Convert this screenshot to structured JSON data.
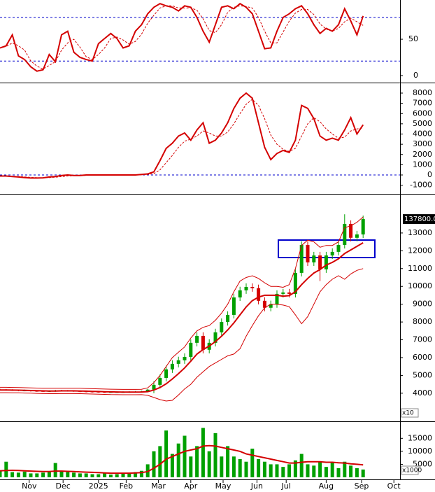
{
  "chart_data": [
    {
      "type": "line",
      "x": [
        0,
        4,
        8,
        12,
        16,
        20,
        24,
        28,
        32,
        36,
        40,
        44,
        48,
        52,
        56,
        60,
        64,
        68,
        72,
        76,
        80,
        84,
        88,
        92,
        96,
        100,
        104,
        108,
        112,
        116,
        120,
        124,
        128,
        132,
        136,
        140,
        144,
        148,
        152,
        156,
        160,
        164,
        168,
        172,
        176,
        180,
        184,
        188,
        192,
        196,
        200,
        204,
        208,
        212,
        216,
        220,
        224,
        228,
        232,
        236
      ],
      "xlim": [
        0,
        260
      ],
      "ylim": [
        -8.7,
        104
      ],
      "yticks": [
        0,
        50
      ],
      "reference_lines": [
        20,
        80
      ],
      "series": [
        {
          "color": "#d40000",
          "width": 2,
          "dashed": false,
          "values": [
            38,
            41,
            56,
            27,
            22,
            12,
            6,
            8,
            29,
            19,
            56,
            61,
            32,
            25,
            22,
            20,
            44,
            51,
            58,
            51,
            38,
            41,
            61,
            70,
            85,
            94,
            99,
            96,
            94,
            89,
            96,
            94,
            80,
            61,
            46,
            70,
            94,
            96,
            92,
            99,
            94,
            85,
            61,
            37,
            38,
            61,
            80,
            85,
            92,
            96,
            85,
            70,
            58,
            65,
            61,
            70,
            92,
            75,
            56,
            82
          ]
        },
        {
          "color": "#d40000",
          "width": 1,
          "dashed": true,
          "values": [
            38,
            40,
            45,
            41,
            35,
            20,
            13,
            9,
            14,
            19,
            35,
            45,
            50,
            39,
            26,
            22,
            29,
            38,
            51,
            53,
            49,
            43,
            47,
            57,
            72,
            83,
            93,
            96,
            96,
            93,
            93,
            93,
            90,
            78,
            62,
            59,
            70,
            87,
            94,
            96,
            95,
            93,
            80,
            61,
            45,
            45,
            60,
            75,
            86,
            91,
            91,
            84,
            71,
            64,
            61,
            65,
            74,
            79,
            74,
            69
          ]
        }
      ]
    },
    {
      "type": "line",
      "x": [
        0,
        4,
        8,
        12,
        16,
        20,
        24,
        28,
        32,
        36,
        40,
        44,
        48,
        52,
        56,
        60,
        64,
        68,
        72,
        76,
        80,
        84,
        88,
        92,
        96,
        100,
        104,
        108,
        112,
        116,
        120,
        124,
        128,
        132,
        136,
        140,
        144,
        148,
        152,
        156,
        160,
        164,
        168,
        172,
        176,
        180,
        184,
        188,
        192,
        196,
        200,
        204,
        208,
        212,
        216,
        220,
        224,
        228,
        232,
        236
      ],
      "xlim": [
        0,
        260
      ],
      "ylim": [
        -1710,
        8890
      ],
      "yticks": [
        -1000,
        0,
        1000,
        2000,
        3000,
        4000,
        5000,
        6000,
        7000,
        8000
      ],
      "reference_lines": [
        0
      ],
      "series": [
        {
          "color": "#d40000",
          "width": 2,
          "dashed": false,
          "values": [
            -100,
            -100,
            -150,
            -200,
            -250,
            -300,
            -300,
            -280,
            -200,
            -150,
            -50,
            0,
            -50,
            -50,
            0,
            0,
            0,
            0,
            0,
            0,
            0,
            0,
            0,
            50,
            100,
            300,
            1400,
            2600,
            3100,
            3800,
            4100,
            3400,
            4400,
            5100,
            3100,
            3400,
            4100,
            5100,
            6500,
            7500,
            8000,
            7500,
            5100,
            2700,
            1500,
            2100,
            2400,
            2200,
            3400,
            6800,
            6500,
            5500,
            3800,
            3400,
            3600,
            3400,
            4400,
            5600,
            4000,
            4900
          ]
        },
        {
          "color": "#d40000",
          "width": 1,
          "dashed": true,
          "values": [
            -100,
            -100,
            -120,
            -150,
            -190,
            -230,
            -270,
            -280,
            -260,
            -220,
            -160,
            -100,
            -70,
            -50,
            -40,
            -20,
            -10,
            0,
            0,
            0,
            0,
            0,
            0,
            20,
            50,
            130,
            500,
            1200,
            1900,
            2700,
            3300,
            3500,
            3800,
            4300,
            4100,
            3800,
            3800,
            4200,
            5000,
            6000,
            6900,
            7400,
            6800,
            5500,
            3900,
            3000,
            2500,
            2300,
            2600,
            3800,
            5000,
            5600,
            5200,
            4500,
            4000,
            3600,
            3700,
            4300,
            4500,
            4600
          ]
        }
      ]
    },
    {
      "type": "candlestick",
      "x": [
        0,
        4,
        8,
        12,
        16,
        20,
        24,
        28,
        32,
        36,
        40,
        44,
        48,
        52,
        56,
        60,
        64,
        68,
        72,
        76,
        80,
        84,
        88,
        92,
        96,
        100,
        104,
        108,
        112,
        116,
        120,
        124,
        128,
        132,
        136,
        140,
        144,
        148,
        152,
        156,
        160,
        164,
        168,
        172,
        176,
        180,
        184,
        188,
        192,
        196,
        200,
        204,
        208,
        212,
        216,
        220,
        224,
        228,
        232,
        236
      ],
      "xlim": [
        0,
        260
      ],
      "ylim": [
        2500,
        15080
      ],
      "yticks": [
        4000,
        5000,
        6000,
        7000,
        8000,
        9000,
        10000,
        11000,
        12000,
        13000
      ],
      "axis_unit": "x10",
      "last_label": "137800.0",
      "up_color": "#00a000",
      "down_color": "#d40000",
      "open": [
        4210,
        4200,
        4180,
        4170,
        4150,
        4150,
        4130,
        4120,
        4110,
        4120,
        4150,
        4140,
        4130,
        4120,
        4100,
        4090,
        4080,
        4070,
        4060,
        4060,
        4060,
        4060,
        4070,
        4080,
        4100,
        4200,
        4470,
        4860,
        5340,
        5650,
        5850,
        6040,
        6830,
        7220,
        6440,
        6830,
        7420,
        8000,
        8400,
        9380,
        9780,
        9970,
        9900,
        9190,
        8800,
        9000,
        9580,
        9660,
        9580,
        10760,
        12330,
        11350,
        11740,
        10960,
        11740,
        11940,
        12330,
        13510,
        12730,
        12920
      ],
      "high": [
        4250,
        4240,
        4220,
        4210,
        4200,
        4190,
        4170,
        4160,
        4160,
        4190,
        4190,
        4180,
        4170,
        4160,
        4140,
        4130,
        4120,
        4110,
        4100,
        4100,
        4100,
        4110,
        4120,
        4140,
        4240,
        4670,
        5060,
        5540,
        5850,
        6050,
        6240,
        7030,
        7420,
        7420,
        7030,
        7620,
        8200,
        8600,
        9580,
        9980,
        10170,
        10170,
        10100,
        9390,
        9200,
        9780,
        9860,
        9860,
        10960,
        12530,
        12530,
        11940,
        11940,
        11940,
        12140,
        12530,
        14050,
        13710,
        13120,
        13980
      ],
      "low": [
        4160,
        4140,
        4130,
        4110,
        4110,
        4090,
        4080,
        4070,
        4070,
        4080,
        4100,
        4090,
        4080,
        4060,
        4050,
        4040,
        4030,
        4020,
        4020,
        4020,
        4020,
        4020,
        4030,
        4040,
        4060,
        4000,
        4270,
        4660,
        5140,
        5450,
        5650,
        5840,
        6630,
        6240,
        6240,
        6630,
        7220,
        7800,
        8200,
        9180,
        9580,
        9700,
        8990,
        8600,
        8600,
        8800,
        9380,
        9380,
        9380,
        10560,
        11150,
        11150,
        10300,
        10760,
        11540,
        11740,
        12130,
        12530,
        12530,
        12720
      ],
      "close": [
        4200,
        4180,
        4170,
        4150,
        4150,
        4130,
        4120,
        4110,
        4120,
        4150,
        4140,
        4130,
        4120,
        4100,
        4090,
        4080,
        4070,
        4060,
        4060,
        4060,
        4060,
        4070,
        4080,
        4100,
        4200,
        4470,
        4860,
        5340,
        5650,
        5850,
        6040,
        6830,
        7220,
        6440,
        6830,
        7420,
        8000,
        8400,
        9380,
        9780,
        9970,
        9900,
        9190,
        8800,
        9000,
        9580,
        9660,
        9580,
        10760,
        12330,
        11350,
        11740,
        10960,
        11740,
        11940,
        12330,
        13510,
        12730,
        12920,
        13780
      ],
      "series": [
        {
          "color": "#d40000",
          "width": 1,
          "dashed": false,
          "values": [
            4330,
            4330,
            4325,
            4320,
            4310,
            4300,
            4290,
            4280,
            4275,
            4275,
            4280,
            4280,
            4280,
            4275,
            4265,
            4255,
            4245,
            4235,
            4225,
            4220,
            4215,
            4215,
            4215,
            4220,
            4300,
            4600,
            5000,
            5500,
            6000,
            6300,
            6600,
            7100,
            7500,
            7700,
            7800,
            8100,
            8500,
            9000,
            9700,
            10300,
            10500,
            10600,
            10450,
            10200,
            10000,
            10000,
            9950,
            10100,
            11000,
            12300,
            12600,
            12500,
            12200,
            12300,
            12300,
            12500,
            13300,
            13400,
            13600,
            13900
          ]
        },
        {
          "color": "#d40000",
          "width": 2,
          "dashed": false,
          "values": [
            4180,
            4180,
            4175,
            4170,
            4160,
            4150,
            4140,
            4130,
            4125,
            4125,
            4130,
            4130,
            4130,
            4125,
            4115,
            4105,
            4095,
            4085,
            4075,
            4070,
            4065,
            4065,
            4065,
            4070,
            4090,
            4180,
            4320,
            4530,
            4800,
            5100,
            5420,
            5800,
            6200,
            6450,
            6650,
            6900,
            7200,
            7550,
            7950,
            8400,
            8850,
            9200,
            9400,
            9500,
            9500,
            9500,
            9450,
            9480,
            9700,
            10100,
            10450,
            10750,
            10950,
            11200,
            11350,
            11550,
            11850,
            12050,
            12250,
            12450
          ]
        },
        {
          "color": "#d40000",
          "width": 1,
          "dashed": false,
          "values": [
            4030,
            4030,
            4025,
            4020,
            4010,
            4000,
            3990,
            3980,
            3975,
            3975,
            3980,
            3980,
            3980,
            3975,
            3965,
            3955,
            3945,
            3935,
            3925,
            3920,
            3915,
            3915,
            3915,
            3920,
            3880,
            3760,
            3640,
            3560,
            3600,
            3900,
            4240,
            4500,
            4900,
            5200,
            5500,
            5700,
            5900,
            6100,
            6200,
            6500,
            7200,
            7800,
            8350,
            8800,
            9000,
            9000,
            8950,
            8860,
            8400,
            7900,
            8300,
            9000,
            9700,
            10100,
            10400,
            10600,
            10400,
            10700,
            10900,
            11000
          ]
        }
      ]
    },
    {
      "type": "bar",
      "x": [
        0,
        4,
        8,
        12,
        16,
        20,
        24,
        28,
        32,
        36,
        40,
        44,
        48,
        52,
        56,
        60,
        64,
        68,
        72,
        76,
        80,
        84,
        88,
        92,
        96,
        100,
        104,
        108,
        112,
        116,
        120,
        124,
        128,
        132,
        136,
        140,
        144,
        148,
        152,
        156,
        160,
        164,
        168,
        172,
        176,
        180,
        184,
        188,
        192,
        196,
        200,
        204,
        208,
        212,
        216,
        220,
        224,
        228,
        232,
        236
      ],
      "xlim": [
        0,
        260
      ],
      "ylim": [
        0,
        21000
      ],
      "yticks": [
        5000,
        10000,
        15000
      ],
      "axis_unit": "x1000",
      "color": "#00a000",
      "values": [
        2500,
        6000,
        2000,
        1800,
        2200,
        1500,
        1500,
        1800,
        2000,
        5500,
        2500,
        2000,
        1800,
        1500,
        1500,
        1200,
        1200,
        1500,
        1000,
        1200,
        1500,
        1500,
        2000,
        2500,
        5000,
        10000,
        12000,
        18000,
        9000,
        13000,
        16000,
        8000,
        12000,
        19000,
        10000,
        17000,
        8000,
        12000,
        8000,
        7000,
        6000,
        11000,
        7000,
        6000,
        5000,
        5000,
        4000,
        5000,
        6500,
        9000,
        5000,
        4500,
        6000,
        4000,
        5500,
        3500,
        6000,
        4500,
        3500,
        3000
      ],
      "series": [
        {
          "color": "#d40000",
          "width": 2,
          "dashed": false,
          "values": [
            2500,
            2600,
            2700,
            2600,
            2500,
            2400,
            2300,
            2200,
            2200,
            2400,
            2400,
            2300,
            2200,
            2100,
            2000,
            1900,
            1800,
            1700,
            1600,
            1600,
            1600,
            1600,
            1700,
            1800,
            2200,
            3500,
            5000,
            7000,
            8000,
            9000,
            10000,
            10500,
            11000,
            12000,
            12200,
            12000,
            11500,
            11000,
            10500,
            10000,
            9000,
            8500,
            8000,
            7500,
            7000,
            6500,
            6000,
            5500,
            5500,
            5800,
            6000,
            6000,
            6000,
            5800,
            5800,
            5600,
            5500,
            5200,
            5000,
            4800
          ]
        }
      ],
      "xticks": [
        {
          "value": 19,
          "label": "Nov"
        },
        {
          "value": 41,
          "label": "Dec"
        },
        {
          "value": 64,
          "label": "2025"
        },
        {
          "value": 82,
          "label": "Feb"
        },
        {
          "value": 103,
          "label": "Mar"
        },
        {
          "value": 124,
          "label": "Apr"
        },
        {
          "value": 145,
          "label": "May"
        },
        {
          "value": 167,
          "label": "Jun"
        },
        {
          "value": 186,
          "label": "Jul"
        },
        {
          "value": 212,
          "label": "Aug"
        },
        {
          "value": 235,
          "label": "Sep"
        },
        {
          "value": 256,
          "label": "Oct"
        }
      ]
    }
  ]
}
